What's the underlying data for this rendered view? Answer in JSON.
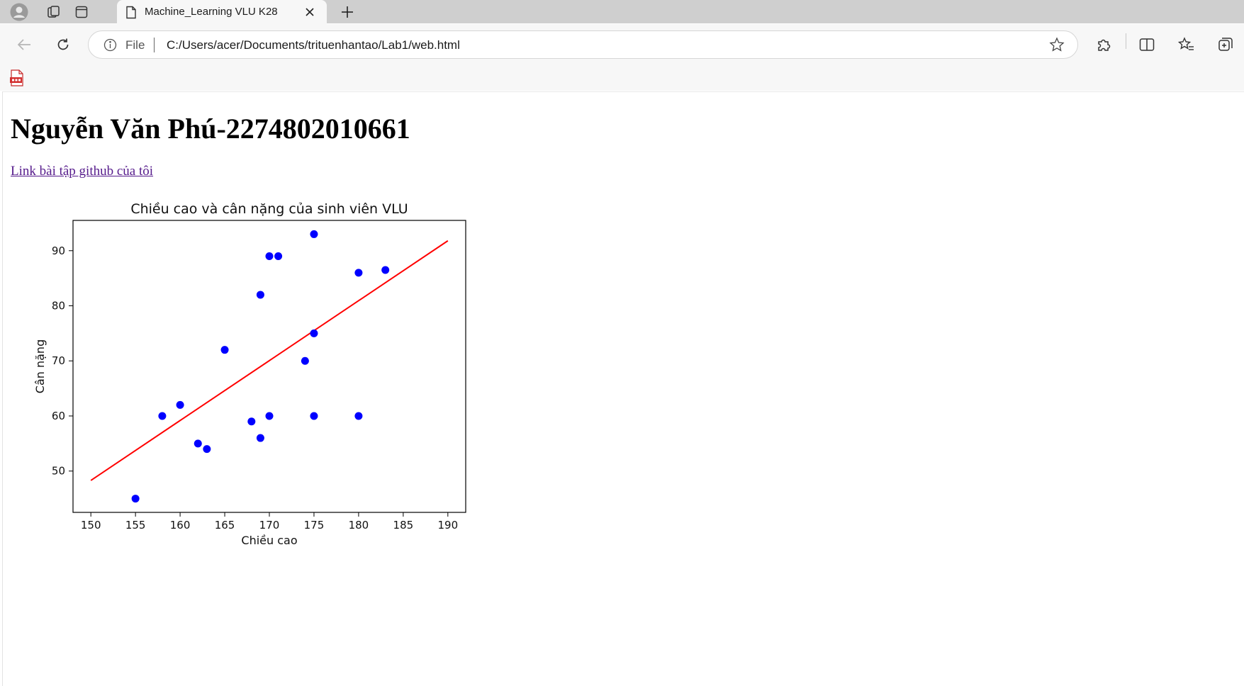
{
  "browser": {
    "tab": {
      "title": "Machine_Learning VLU K28"
    },
    "address_bar": {
      "scheme": "File",
      "url": "C:/Users/acer/Documents/trituenhantao/Lab1/web.html"
    },
    "favorites": [
      {
        "icon": "pdf-icon"
      }
    ],
    "colors": {
      "tabstrip": "#cfcfcf",
      "toolbar": "#f7f7f7"
    }
  },
  "page": {
    "heading": "Nguyễn Văn Phú-2274802010661",
    "github_link": "Link bài tập github của tôi",
    "link_color": "#551a8b"
  },
  "chart_data": {
    "type": "scatter",
    "title": "Chiều cao và cân nặng của sinh viên VLU",
    "xlabel": "Chiều cao",
    "ylabel": "Cân nặng",
    "xlim": [
      148,
      192
    ],
    "ylim": [
      42.5,
      95.5
    ],
    "xticks": [
      150,
      155,
      160,
      165,
      170,
      175,
      180,
      185,
      190
    ],
    "yticks": [
      50,
      60,
      70,
      80,
      90
    ],
    "grid": false,
    "points": [
      {
        "x": 155,
        "y": 45
      },
      {
        "x": 158,
        "y": 60
      },
      {
        "x": 160,
        "y": 62
      },
      {
        "x": 162,
        "y": 55
      },
      {
        "x": 163,
        "y": 54
      },
      {
        "x": 165,
        "y": 72
      },
      {
        "x": 168,
        "y": 59
      },
      {
        "x": 169,
        "y": 56
      },
      {
        "x": 169,
        "y": 82
      },
      {
        "x": 170,
        "y": 60
      },
      {
        "x": 170,
        "y": 89
      },
      {
        "x": 171,
        "y": 89
      },
      {
        "x": 174,
        "y": 70
      },
      {
        "x": 175,
        "y": 93
      },
      {
        "x": 175,
        "y": 75
      },
      {
        "x": 175,
        "y": 60
      },
      {
        "x": 180,
        "y": 86
      },
      {
        "x": 180,
        "y": 60
      },
      {
        "x": 183,
        "y": 86.5
      }
    ],
    "regression_line": {
      "x": [
        150,
        190
      ],
      "y": [
        48.3,
        91.8
      ]
    },
    "colors": {
      "points": "#0000ff",
      "line": "#ff0000"
    }
  }
}
